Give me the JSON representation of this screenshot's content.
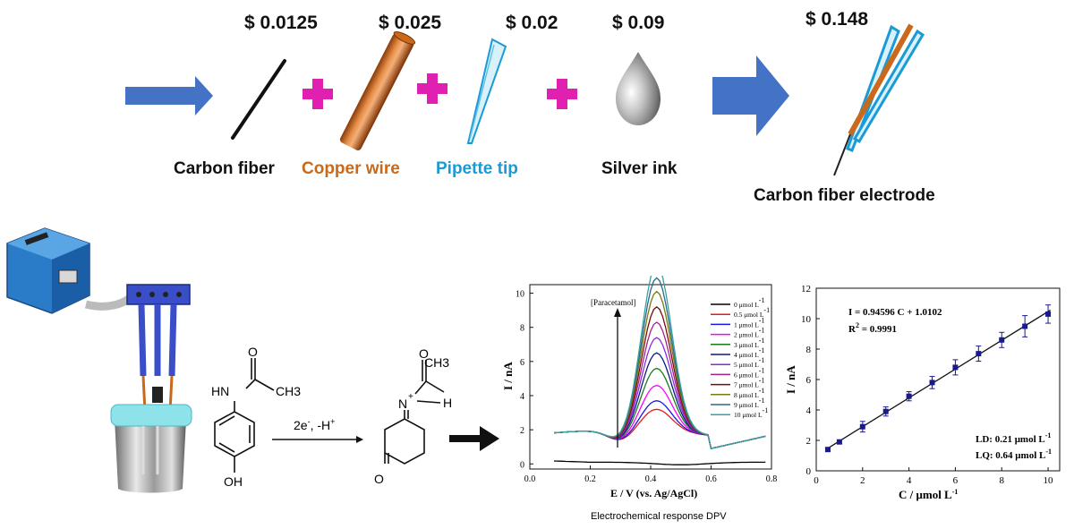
{
  "top": {
    "prices": [
      "$ 0.0125",
      "$ 0.025",
      "$ 0.02",
      "$ 0.09",
      "$ 0.148"
    ],
    "labels": [
      {
        "text": "Carbon fiber",
        "color": "#111111"
      },
      {
        "text": "Copper wire",
        "color": "#c8691c"
      },
      {
        "text": "Pipette tip",
        "color": "#1a9ad6"
      },
      {
        "text": "Silver ink",
        "color": "#111111"
      },
      {
        "text": "Carbon fiber electrode",
        "color": "#111111"
      }
    ],
    "arrow_color": "#4472c4",
    "plus_color": "#e020b0"
  },
  "reaction": {
    "reactant": {
      "nh": "HN",
      "o": "O",
      "ch3": "CH3",
      "oh": "OH"
    },
    "conditions": {
      "e": "2e",
      "e_sup": "-",
      "h": ", -H",
      "h_sup": "+"
    },
    "product": {
      "nh": "N",
      "plus": "+",
      "h": "H",
      "ch3": "CH3",
      "o": "O",
      "ring_o": "O"
    }
  },
  "chart_data": [
    {
      "type": "line",
      "caption": "Electrochemical response DPV",
      "xlabel": "E / V (vs. Ag/AgCl)",
      "ylabel": "I / nA",
      "xlim": [
        0.0,
        0.8
      ],
      "ylim": [
        -0.3,
        10.5
      ],
      "x_ticks": [
        "0.0",
        "0.2",
        "0.4",
        "0.6",
        "0.8"
      ],
      "y_ticks": [
        "0",
        "2",
        "4",
        "6",
        "8",
        "10"
      ],
      "annotation": "[Paracetamol]",
      "legend_position": "top-right",
      "series": [
        {
          "name": "0 μmol L-1",
          "color": "#000000",
          "peak": 0.0
        },
        {
          "name": "0.5 μmol L-1",
          "color": "#e8191e",
          "peak": 1.3
        },
        {
          "name": "1 μmol L-1",
          "color": "#1a1ae0",
          "peak": 1.8
        },
        {
          "name": "2 μmol L-1",
          "color": "#ff00ff",
          "peak": 2.7
        },
        {
          "name": "3 μmol L-1",
          "color": "#1a7a1a",
          "peak": 3.7
        },
        {
          "name": "4 μmol L-1",
          "color": "#0a1a80",
          "peak": 4.6
        },
        {
          "name": "5 μmol L-1",
          "color": "#8a2be2",
          "peak": 5.5
        },
        {
          "name": "6 μmol L-1",
          "color": "#a0208a",
          "peak": 6.4
        },
        {
          "name": "7 μmol L-1",
          "color": "#7a0a0a",
          "peak": 7.3
        },
        {
          "name": "8 μmol L-1",
          "color": "#7a7a10",
          "peak": 8.2
        },
        {
          "name": "9 μmol L-1",
          "color": "#2a6a8a",
          "peak": 9.0
        },
        {
          "name": "10 μmol L-1",
          "color": "#3aa0a0",
          "peak": 9.8
        }
      ],
      "peak_potential": 0.42,
      "baseline_at_x_min": 2.2,
      "baseline_at_x_max": 1.6
    },
    {
      "type": "scatter",
      "xlabel": "C / μmol L-1",
      "ylabel": "I / nA",
      "xlim": [
        0,
        10.5
      ],
      "ylim": [
        0,
        12
      ],
      "x_ticks": [
        "0",
        "2",
        "4",
        "6",
        "8",
        "10"
      ],
      "y_ticks": [
        "0",
        "2",
        "4",
        "6",
        "8",
        "10",
        "12"
      ],
      "equation": "I = 0.94596 C  + 1.0102",
      "r2": "R2 = 0.9991",
      "ld": "LD: 0.21 μmol L-1",
      "lq": "LQ: 0.64 μmol L-1",
      "fit": {
        "slope": 0.94596,
        "intercept": 1.0102
      },
      "points": [
        {
          "x": 0.5,
          "y": 1.4,
          "err": 0.1
        },
        {
          "x": 1,
          "y": 1.9,
          "err": 0.1
        },
        {
          "x": 2,
          "y": 2.9,
          "err": 0.35
        },
        {
          "x": 3,
          "y": 3.9,
          "err": 0.3
        },
        {
          "x": 4,
          "y": 4.9,
          "err": 0.3
        },
        {
          "x": 5,
          "y": 5.8,
          "err": 0.4
        },
        {
          "x": 6,
          "y": 6.8,
          "err": 0.5
        },
        {
          "x": 7,
          "y": 7.7,
          "err": 0.5
        },
        {
          "x": 8,
          "y": 8.6,
          "err": 0.5
        },
        {
          "x": 9,
          "y": 9.5,
          "err": 0.7
        },
        {
          "x": 10,
          "y": 10.3,
          "err": 0.6
        }
      ]
    }
  ]
}
